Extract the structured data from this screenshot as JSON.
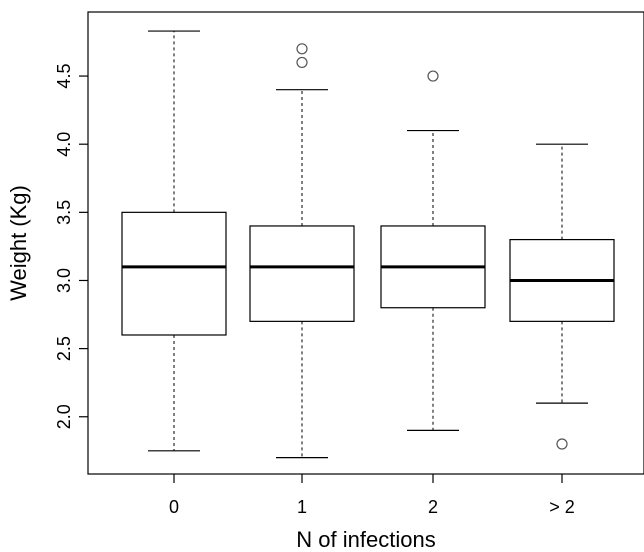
{
  "chart_data": {
    "type": "box",
    "title": "",
    "xlabel": "N of infections",
    "ylabel": "Weight (Kg)",
    "categories": [
      "0",
      "1",
      "2",
      "> 2"
    ],
    "ylim": [
      1.58,
      4.97
    ],
    "yticks": [
      2.0,
      2.5,
      3.0,
      3.5,
      4.0,
      4.5
    ],
    "ytick_labels": [
      "2.0",
      "2.5",
      "3.0",
      "3.5",
      "4.0",
      "4.5"
    ],
    "boxes": [
      {
        "category": "0",
        "whisker_low": 1.75,
        "q1": 2.6,
        "median": 3.1,
        "q3": 3.5,
        "whisker_high": 4.83,
        "outliers": []
      },
      {
        "category": "1",
        "whisker_low": 1.7,
        "q1": 2.7,
        "median": 3.1,
        "q3": 3.4,
        "whisker_high": 4.4,
        "outliers": [
          4.6,
          4.7
        ]
      },
      {
        "category": "2",
        "whisker_low": 1.9,
        "q1": 2.8,
        "median": 3.1,
        "q3": 3.4,
        "whisker_high": 4.1,
        "outliers": [
          4.5
        ]
      },
      {
        "category": "> 2",
        "whisker_low": 2.1,
        "q1": 2.7,
        "median": 3.0,
        "q3": 3.3,
        "whisker_high": 4.0,
        "outliers": [
          1.8
        ]
      }
    ],
    "grid": false,
    "legend": "none"
  }
}
